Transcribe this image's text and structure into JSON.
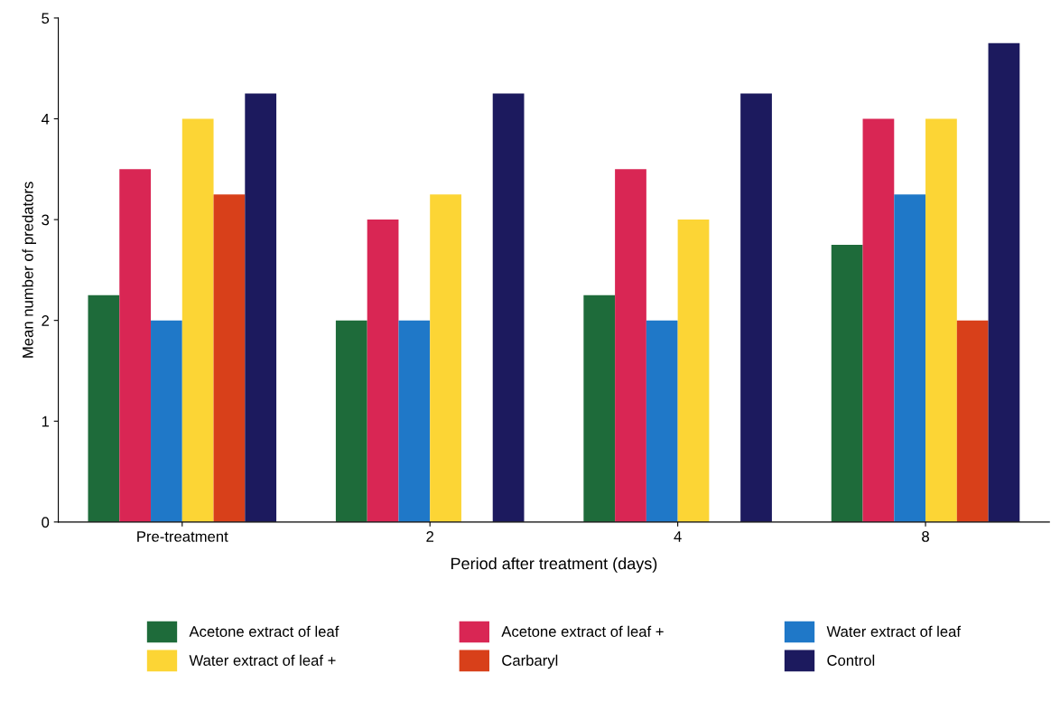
{
  "chart_data": {
    "type": "bar",
    "xlabel": "Period after treatment (days)",
    "ylabel": "Mean number of predators",
    "categories": [
      "Pre-treatment",
      "2",
      "4",
      "8"
    ],
    "series": [
      {
        "name": "Acetone extract of leaf",
        "color": "#1e6b3a",
        "values": [
          2.25,
          2,
          2.25,
          2.75
        ]
      },
      {
        "name": "Acetone extract of leaf +",
        "color": "#d92654",
        "values": [
          3.5,
          3,
          3.5,
          4
        ]
      },
      {
        "name": "Water extract of leaf",
        "color": "#1f78c8",
        "values": [
          2,
          2,
          2,
          3.25
        ]
      },
      {
        "name": "Water extract of leaf +",
        "color": "#fcd535",
        "values": [
          4,
          3.25,
          3,
          4
        ]
      },
      {
        "name": "Carbaryl",
        "color": "#d8401a",
        "values": [
          3.25,
          null,
          null,
          2
        ]
      },
      {
        "name": "Control",
        "color": "#1c1a5e",
        "values": [
          4.25,
          4.25,
          4.25,
          4.75
        ]
      }
    ],
    "ylim": [
      0,
      5
    ],
    "yticks": [
      0,
      1,
      2,
      3,
      4,
      5
    ],
    "grid": false,
    "legend": "bottom"
  }
}
